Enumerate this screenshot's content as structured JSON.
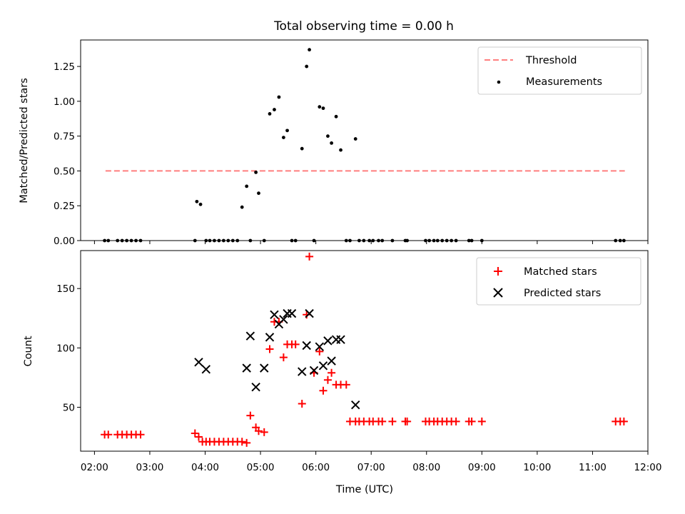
{
  "figure_title": "Total observing time = 0.00 h",
  "x_label": "Time (UTC)",
  "x_ticks": [
    "02:00",
    "03:00",
    "04:00",
    "05:00",
    "06:00",
    "07:00",
    "08:00",
    "09:00",
    "10:00",
    "11:00",
    "12:00"
  ],
  "colors": {
    "threshold": "#ff7f7f",
    "measurements": "#000000",
    "matched": "#ff0000",
    "predicted": "#000000"
  },
  "chart_data": [
    {
      "type": "scatter",
      "title": "Total observing time = 0.00 h",
      "xlabel": "",
      "ylabel": "Matched/Predicted stars",
      "xlim": [
        "01:45",
        "12:00"
      ],
      "ylim": [
        0,
        1.44
      ],
      "y_ticks": [
        "0.00",
        "0.25",
        "0.50",
        "0.75",
        "1.00",
        "1.25"
      ],
      "y_tick_values": [
        0,
        0.25,
        0.5,
        0.75,
        1.0,
        1.25
      ],
      "legend": {
        "placement": "top-right",
        "entries": [
          "Threshold",
          "Measurements"
        ]
      },
      "series": [
        {
          "name": "Threshold",
          "style": "dashed-line",
          "x": [
            "02:12",
            "11:35"
          ],
          "y": [
            0.5,
            0.5
          ]
        },
        {
          "name": "Measurements",
          "style": "dots",
          "x": [
            "02:11",
            "02:15",
            "02:25",
            "02:30",
            "02:35",
            "02:40",
            "02:45",
            "02:50",
            "03:49",
            "03:51",
            "03:55",
            "04:01",
            "04:05",
            "04:10",
            "04:15",
            "04:20",
            "04:25",
            "04:30",
            "04:35",
            "04:40",
            "04:45",
            "04:49",
            "04:55",
            "04:58",
            "05:04",
            "05:10",
            "05:15",
            "05:20",
            "05:25",
            "05:29",
            "05:34",
            "05:38",
            "05:45",
            "05:50",
            "05:53",
            "05:58",
            "06:04",
            "06:08",
            "06:13",
            "06:17",
            "06:22",
            "06:27",
            "06:33",
            "06:37",
            "06:43",
            "06:47",
            "06:52",
            "06:58",
            "07:02",
            "07:08",
            "07:12",
            "07:23",
            "07:37",
            "07:39",
            "07:59",
            "08:03",
            "08:08",
            "08:12",
            "08:17",
            "08:22",
            "08:27",
            "08:32",
            "08:46",
            "08:49",
            "09:00",
            "11:25",
            "11:30",
            "11:34"
          ],
          "y": [
            0,
            0,
            0,
            0,
            0,
            0,
            0,
            0,
            0,
            0.28,
            0.26,
            0,
            0,
            0,
            0,
            0,
            0,
            0,
            0,
            0.24,
            0.39,
            0,
            0.49,
            0.34,
            0,
            0.91,
            0.94,
            1.03,
            0.74,
            0.79,
            0,
            0,
            0.66,
            1.25,
            1.37,
            0,
            0.96,
            0.95,
            0.75,
            0.7,
            0.89,
            0.65,
            0,
            0,
            0.73,
            0,
            0,
            0,
            0,
            0,
            0,
            0,
            0,
            0,
            0,
            0,
            0,
            0,
            0,
            0,
            0,
            0,
            0,
            0,
            0,
            0,
            0,
            0
          ]
        }
      ]
    },
    {
      "type": "scatter",
      "title": "",
      "xlabel": "Time (UTC)",
      "ylabel": "Count",
      "xlim": [
        "01:45",
        "12:00"
      ],
      "ylim": [
        13,
        182
      ],
      "y_ticks": [
        "50",
        "100",
        "150"
      ],
      "y_tick_values": [
        50,
        100,
        150
      ],
      "legend": {
        "placement": "top-right",
        "entries": [
          "Matched stars",
          "Predicted stars"
        ]
      },
      "series": [
        {
          "name": "Matched stars",
          "marker": "plus",
          "x": [
            "02:11",
            "02:15",
            "02:25",
            "02:30",
            "02:35",
            "02:40",
            "02:45",
            "02:50",
            "03:49",
            "03:53",
            "03:57",
            "04:01",
            "04:05",
            "04:10",
            "04:15",
            "04:20",
            "04:25",
            "04:30",
            "04:35",
            "04:40",
            "04:45",
            "04:49",
            "04:55",
            "04:58",
            "05:04",
            "05:10",
            "05:15",
            "05:20",
            "05:25",
            "05:29",
            "05:34",
            "05:38",
            "05:45",
            "05:50",
            "05:53",
            "05:58",
            "06:04",
            "06:08",
            "06:13",
            "06:17",
            "06:22",
            "06:27",
            "06:33",
            "06:37",
            "06:43",
            "06:47",
            "06:52",
            "06:58",
            "07:02",
            "07:08",
            "07:12",
            "07:23",
            "07:37",
            "07:39",
            "07:59",
            "08:03",
            "08:08",
            "08:12",
            "08:17",
            "08:22",
            "08:27",
            "08:32",
            "08:46",
            "08:49",
            "09:00",
            "11:25",
            "11:30",
            "11:34"
          ],
          "y": [
            27,
            27,
            27,
            27,
            27,
            27,
            27,
            27,
            28,
            25,
            21,
            21,
            21,
            21,
            21,
            21,
            21,
            21,
            21,
            21,
            20,
            43,
            33,
            30,
            29,
            99,
            122,
            122,
            92,
            103,
            103,
            103,
            53,
            128,
            177,
            79,
            97,
            64,
            73,
            79,
            69,
            69,
            69,
            38,
            38,
            38,
            38,
            38,
            38,
            38,
            38,
            38,
            38,
            38,
            38,
            38,
            38,
            38,
            38,
            38,
            38,
            38,
            38,
            38,
            38,
            38,
            38,
            38
          ]
        },
        {
          "name": "Predicted stars",
          "marker": "x",
          "x": [
            "03:53",
            "04:01",
            "04:45",
            "04:49",
            "04:55",
            "05:04",
            "05:10",
            "05:15",
            "05:20",
            "05:25",
            "05:29",
            "05:34",
            "05:45",
            "05:50",
            "05:53",
            "05:58",
            "06:04",
            "06:08",
            "06:13",
            "06:17",
            "06:22",
            "06:27",
            "06:43"
          ],
          "y": [
            88,
            82,
            83,
            110,
            67,
            83,
            109,
            128,
            120,
            124,
            129,
            129,
            80,
            102,
            129,
            81,
            101,
            85,
            106,
            89,
            107,
            107,
            52
          ]
        }
      ]
    }
  ]
}
